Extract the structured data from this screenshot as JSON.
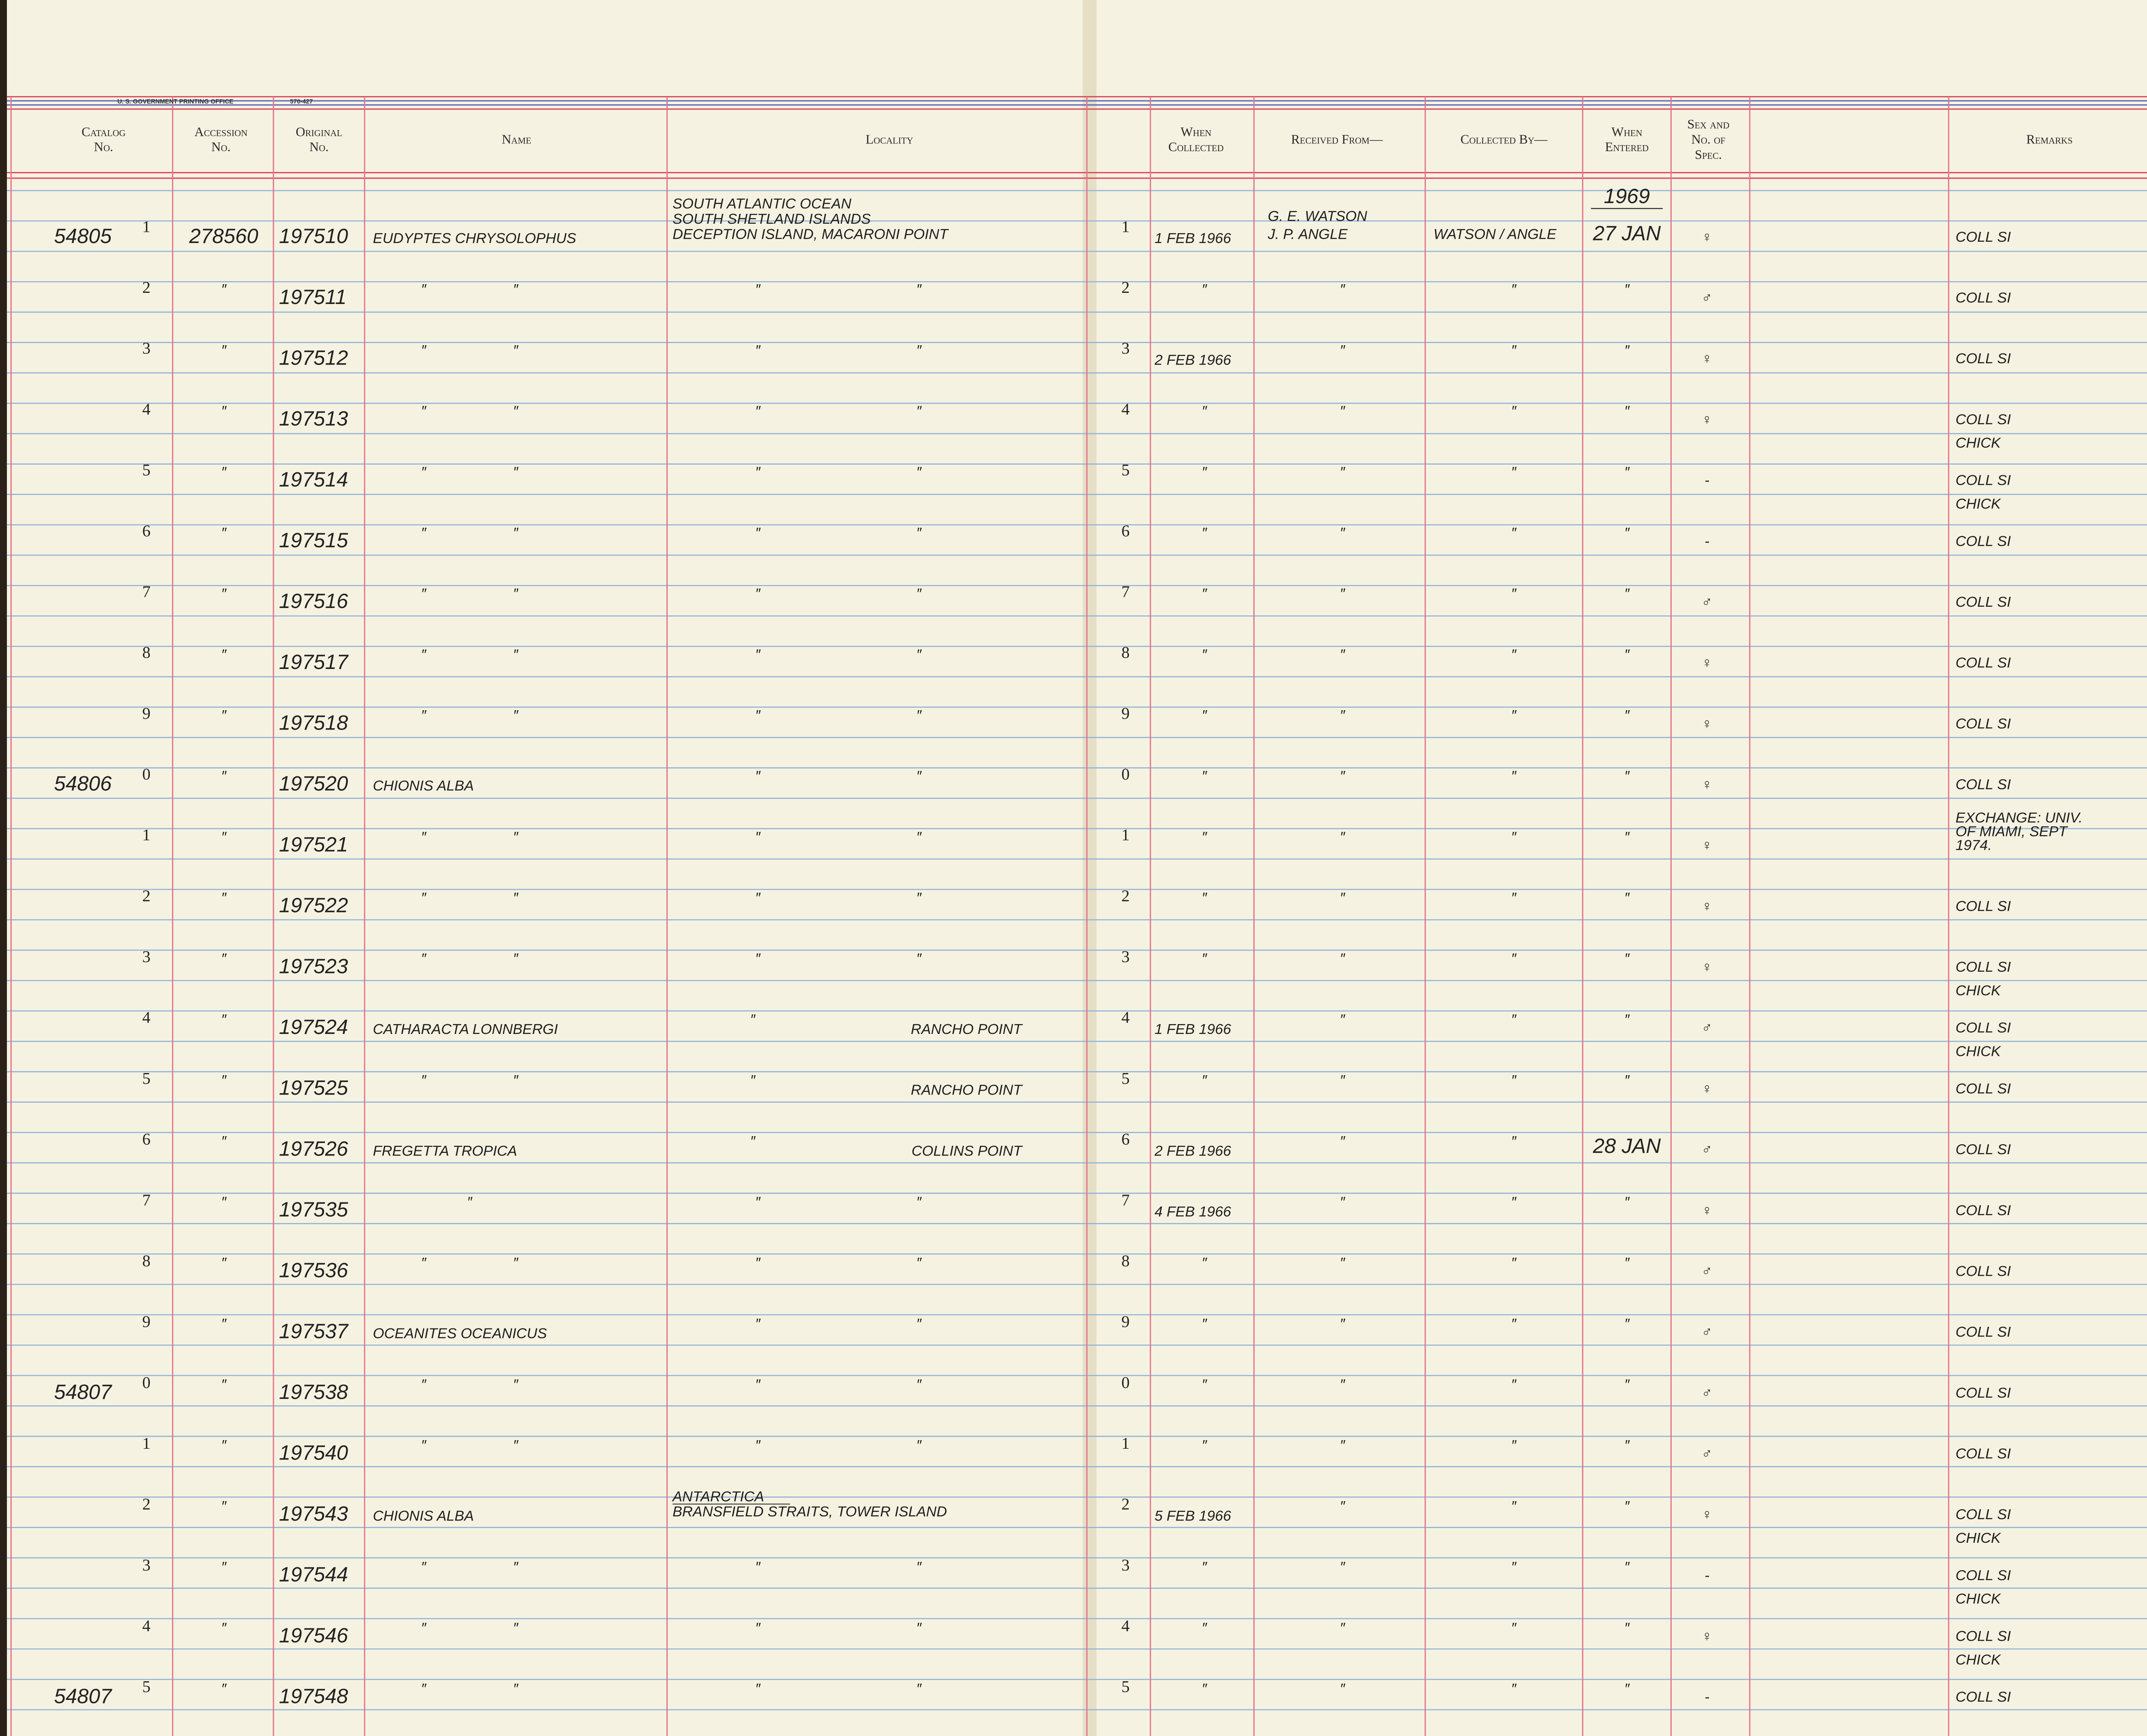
{
  "header": {
    "print": [
      "U. S. GOVERNMENT PRINTING OFFICE",
      "570-427"
    ],
    "columns": [
      {
        "lines": [
          "Catalog",
          "No."
        ]
      },
      {
        "lines": [
          "Accession",
          "No."
        ]
      },
      {
        "lines": [
          "Original",
          "No."
        ]
      },
      {
        "lines": [
          "Name"
        ]
      },
      {
        "lines": [
          "Locality"
        ]
      },
      {
        "lines": [
          "When",
          "Collected"
        ]
      },
      {
        "lines": [
          "Received From—"
        ]
      },
      {
        "lines": [
          "Collected By—"
        ]
      },
      {
        "lines": [
          "When",
          "Entered"
        ]
      },
      {
        "lines": [
          "Sex and",
          "No. of",
          "Spec."
        ]
      },
      {
        "lines": [
          "Remarks"
        ]
      }
    ]
  },
  "rows": [
    {
      "cat": "54805",
      "d": "1",
      "acc": "278560",
      "orig": "197510",
      "name": "EUDYPTES CHRYSOLOPHUS",
      "loc": [
        "SOUTH ATLANTIC OCEAN",
        "SOUTH SHETLAND ISLANDS",
        "DECEPTION ISLAND, MACARONI POINT"
      ],
      "d2": "1",
      "col": "1 FEB 1966",
      "rec": [
        "G. E. WATSON",
        "J. P. ANGLE"
      ],
      "by": "WATSON / ANGLE",
      "ent": [
        "1969",
        "27 JAN"
      ],
      "sex": "♀",
      "rem": [
        "COLL SI"
      ]
    },
    {
      "d": "2",
      "acc": "″",
      "orig": "197511",
      "name": "″ ″",
      "loc": [
        "″ ″"
      ],
      "d2": "2",
      "col": "″",
      "rec": [
        "″"
      ],
      "by": "″",
      "ent": [
        "″"
      ],
      "sex": "♂",
      "rem": [
        "COLL SI"
      ]
    },
    {
      "d": "3",
      "acc": "″",
      "orig": "197512",
      "name": "″ ″",
      "loc": [
        "″ ″"
      ],
      "d2": "3",
      "col": "2 FEB 1966",
      "rec": [
        "″"
      ],
      "by": "″",
      "ent": [
        "″"
      ],
      "sex": "♀",
      "rem": [
        "COLL SI"
      ]
    },
    {
      "d": "4",
      "acc": "″",
      "orig": "197513",
      "name": "″ ″",
      "loc": [
        "″ ″"
      ],
      "d2": "4",
      "col": "″",
      "rec": [
        "″"
      ],
      "by": "″",
      "ent": [
        "″"
      ],
      "sex": "♀",
      "rem": [
        "COLL SI"
      ]
    },
    {
      "d": "5",
      "acc": "″",
      "orig": "197514",
      "name": "″ ″",
      "loc": [
        "″ ″"
      ],
      "d2": "5",
      "col": "″",
      "rec": [
        "″"
      ],
      "by": "″",
      "ent": [
        "″"
      ],
      "sex": "-",
      "rem": [
        "CHICK",
        "COLL SI"
      ]
    },
    {
      "d": "6",
      "acc": "″",
      "orig": "197515",
      "name": "″ ″",
      "loc": [
        "″ ″"
      ],
      "d2": "6",
      "col": "″",
      "rec": [
        "″"
      ],
      "by": "″",
      "ent": [
        "″"
      ],
      "sex": "-",
      "rem": [
        "CHICK",
        "COLL SI"
      ]
    },
    {
      "d": "7",
      "acc": "″",
      "orig": "197516",
      "name": "″ ″",
      "loc": [
        "″ ″"
      ],
      "d2": "7",
      "col": "″",
      "rec": [
        "″"
      ],
      "by": "″",
      "ent": [
        "″"
      ],
      "sex": "♂",
      "rem": [
        "COLL SI"
      ]
    },
    {
      "d": "8",
      "acc": "″",
      "orig": "197517",
      "name": "″ ″",
      "loc": [
        "″ ″"
      ],
      "d2": "8",
      "col": "″",
      "rec": [
        "″"
      ],
      "by": "″",
      "ent": [
        "″"
      ],
      "sex": "♀",
      "rem": [
        "COLL SI"
      ]
    },
    {
      "d": "9",
      "acc": "″",
      "orig": "197518",
      "name": "″ ″",
      "loc": [
        "″ ″"
      ],
      "d2": "9",
      "col": "″",
      "rec": [
        "″"
      ],
      "by": "″",
      "ent": [
        "″"
      ],
      "sex": "♀",
      "rem": [
        "COLL SI"
      ]
    },
    {
      "cat": "54806",
      "d": "0",
      "acc": "″",
      "orig": "197520",
      "name": "CHIONIS ALBA",
      "loc": [
        "″ ″"
      ],
      "d2": "0",
      "col": "″",
      "rec": [
        "″"
      ],
      "by": "″",
      "ent": [
        "″"
      ],
      "sex": "♀",
      "rem": [
        "COLL SI"
      ]
    },
    {
      "d": "1",
      "acc": "″",
      "orig": "197521",
      "name": "″ ″",
      "loc": [
        "″ ″"
      ],
      "d2": "1",
      "col": "″",
      "rec": [
        "″"
      ],
      "by": "″",
      "ent": [
        "″"
      ],
      "sex": "♀",
      "rem": [
        "EXCHANGE: UNIV.",
        "OF MIAMI, SEPT",
        "1974."
      ]
    },
    {
      "d": "2",
      "acc": "″",
      "orig": "197522",
      "name": "″ ″",
      "loc": [
        "″ ″"
      ],
      "d2": "2",
      "col": "″",
      "rec": [
        "″"
      ],
      "by": "″",
      "ent": [
        "″"
      ],
      "sex": "♀",
      "rem": [
        "COLL SI"
      ]
    },
    {
      "d": "3",
      "acc": "″",
      "orig": "197523",
      "name": "″ ″",
      "loc": [
        "″ ″"
      ],
      "d2": "3",
      "col": "″",
      "rec": [
        "″"
      ],
      "by": "″",
      "ent": [
        "″"
      ],
      "sex": "♀",
      "rem": [
        "COLL SI"
      ]
    },
    {
      "d": "4",
      "acc": "″",
      "orig": "197524",
      "name": "CATHARACTA LONNBERGI",
      "loc": [
        "″"
      ],
      "loc2": "RANCHO POINT",
      "d2": "4",
      "col": "1 FEB 1966",
      "rec": [
        "″"
      ],
      "by": "″",
      "ent": [
        "″"
      ],
      "sex": "♂",
      "rem": [
        "CHICK",
        "COLL SI"
      ]
    },
    {
      "d": "5",
      "acc": "″",
      "orig": "197525",
      "name": "″ ″",
      "loc": [
        "″"
      ],
      "loc2": "RANCHO POINT",
      "d2": "5",
      "col": "″",
      "rec": [
        "″"
      ],
      "by": "″",
      "ent": [
        "″"
      ],
      "sex": "♀",
      "rem": [
        "CHICK",
        "COLL SI"
      ]
    },
    {
      "d": "6",
      "acc": "″",
      "orig": "197526",
      "name": "FREGETTA TROPICA",
      "loc": [
        "″"
      ],
      "loc2": "COLLINS POINT",
      "d2": "6",
      "col": "2 FEB 1966",
      "rec": [
        "″"
      ],
      "by": "″",
      "ent": [
        "28 JAN"
      ],
      "sex": "♂",
      "rem": [
        "COLL SI"
      ]
    },
    {
      "d": "7",
      "acc": "″",
      "orig": "197535",
      "name": "″",
      "loc": [
        "″ ″"
      ],
      "d2": "7",
      "col": "4 FEB 1966",
      "rec": [
        "″"
      ],
      "by": "″",
      "ent": [
        "″"
      ],
      "sex": "♀",
      "rem": [
        "COLL SI"
      ]
    },
    {
      "d": "8",
      "acc": "″",
      "orig": "197536",
      "name": "″ ″",
      "loc": [
        "″ ″"
      ],
      "d2": "8",
      "col": "″",
      "rec": [
        "″"
      ],
      "by": "″",
      "ent": [
        "″"
      ],
      "sex": "♂",
      "rem": [
        "COLL SI"
      ]
    },
    {
      "d": "9",
      "acc": "″",
      "orig": "197537",
      "name": "OCEANITES OCEANICUS",
      "loc": [
        "″ ″"
      ],
      "d2": "9",
      "col": "″",
      "rec": [
        "″"
      ],
      "by": "″",
      "ent": [
        "″"
      ],
      "sex": "♂",
      "rem": [
        "COLL SI"
      ]
    },
    {
      "cat": "54807",
      "d": "0",
      "acc": "″",
      "orig": "197538",
      "name": "″ ″",
      "loc": [
        "″ ″"
      ],
      "d2": "0",
      "col": "″",
      "rec": [
        "″"
      ],
      "by": "″",
      "ent": [
        "″"
      ],
      "sex": "♂",
      "rem": [
        "COLL SI"
      ]
    },
    {
      "d": "1",
      "acc": "″",
      "orig": "197540",
      "name": "″ ″",
      "loc": [
        "″ ″"
      ],
      "d2": "1",
      "col": "″",
      "rec": [
        "″"
      ],
      "by": "″",
      "ent": [
        "″"
      ],
      "sex": "♂",
      "rem": [
        "COLL SI"
      ]
    },
    {
      "d": "2",
      "acc": "″",
      "orig": "197543",
      "name": "CHIONIS ALBA",
      "loc": [
        "ANTARCTICA",
        "BRANSFIELD STRAITS, TOWER ISLAND"
      ],
      "d2": "2",
      "col": "5 FEB 1966",
      "rec": [
        "″"
      ],
      "by": "″",
      "ent": [
        "″"
      ],
      "sex": "♀",
      "rem": [
        "COLL SI"
      ]
    },
    {
      "d": "3",
      "acc": "″",
      "orig": "197544",
      "name": "″ ″",
      "loc": [
        "″ ″"
      ],
      "d2": "3",
      "col": "″",
      "rec": [
        "″"
      ],
      "by": "″",
      "ent": [
        "″"
      ],
      "sex": "-",
      "rem": [
        "CHICK",
        "COLL SI"
      ]
    },
    {
      "d": "4",
      "acc": "″",
      "orig": "197546",
      "name": "″ ″",
      "loc": [
        "″ ″"
      ],
      "d2": "4",
      "col": "″",
      "rec": [
        "″"
      ],
      "by": "″",
      "ent": [
        "″"
      ],
      "sex": "♀",
      "rem": [
        "CHICK",
        "COLL SI"
      ]
    },
    {
      "cat": "54807",
      "d": "5",
      "acc": "″",
      "orig": "197548",
      "name": "″ ″",
      "loc": [
        "″ ″"
      ],
      "d2": "5",
      "col": "″",
      "rec": [
        "″"
      ],
      "by": "″",
      "ent": [
        "″"
      ],
      "sex": "-",
      "rem": [
        "CHICK",
        "COLL SI"
      ]
    }
  ]
}
